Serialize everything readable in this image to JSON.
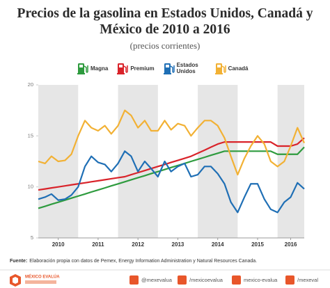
{
  "chart_data": {
    "type": "line",
    "title": "Precios de la gasolina en Estados Unidos, Canadá y México de 2010 a 2016",
    "subtitle": "(precios corrientes)",
    "x": [
      2010.0,
      2010.17,
      2010.33,
      2010.5,
      2010.67,
      2010.83,
      2011.0,
      2011.17,
      2011.33,
      2011.5,
      2011.67,
      2011.83,
      2012.0,
      2012.17,
      2012.33,
      2012.5,
      2012.67,
      2012.83,
      2013.0,
      2013.17,
      2013.33,
      2013.5,
      2013.67,
      2013.83,
      2014.0,
      2014.17,
      2014.33,
      2014.5,
      2014.67,
      2014.83,
      2015.0,
      2015.17,
      2015.33,
      2015.5,
      2015.67,
      2015.83,
      2016.0,
      2016.17,
      2016.33,
      2016.5,
      2016.67
    ],
    "series": [
      {
        "name": "Magna",
        "color": "#2e9b3e",
        "values": [
          7.9,
          8.1,
          8.3,
          8.5,
          8.7,
          8.9,
          9.1,
          9.3,
          9.5,
          9.7,
          9.9,
          10.1,
          10.3,
          10.5,
          10.7,
          10.9,
          11.1,
          11.3,
          11.5,
          11.7,
          11.9,
          12.1,
          12.3,
          12.5,
          12.7,
          12.9,
          13.1,
          13.3,
          13.5,
          13.5,
          13.5,
          13.5,
          13.5,
          13.5,
          13.5,
          13.5,
          13.2,
          13.2,
          13.2,
          13.2,
          13.9
        ]
      },
      {
        "name": "Premium",
        "color": "#d9232a",
        "values": [
          9.7,
          9.8,
          9.9,
          10.0,
          10.1,
          10.2,
          10.3,
          10.4,
          10.5,
          10.6,
          10.7,
          10.8,
          10.9,
          11.0,
          11.2,
          11.4,
          11.6,
          11.8,
          12.0,
          12.2,
          12.4,
          12.6,
          12.8,
          13.0,
          13.3,
          13.6,
          13.9,
          14.2,
          14.4,
          14.4,
          14.4,
          14.4,
          14.4,
          14.4,
          14.4,
          14.4,
          14.0,
          14.0,
          14.0,
          14.2,
          14.8
        ]
      },
      {
        "name": "Estados Unidos",
        "color": "#1f6fb5",
        "values": [
          8.8,
          9.0,
          9.3,
          8.7,
          8.8,
          9.2,
          10.0,
          12.0,
          13.0,
          12.4,
          12.2,
          11.5,
          12.3,
          13.5,
          13.0,
          11.5,
          12.5,
          11.8,
          11.0,
          12.5,
          11.5,
          12.0,
          12.3,
          11.0,
          11.2,
          12.0,
          12.0,
          11.3,
          10.3,
          8.5,
          7.5,
          9.0,
          10.3,
          10.3,
          8.8,
          7.8,
          7.5,
          8.5,
          9.0,
          10.4,
          9.8
        ]
      },
      {
        "name": "Canadá",
        "color": "#f2b134",
        "values": [
          12.5,
          12.3,
          13.0,
          12.5,
          12.6,
          13.2,
          15.0,
          16.5,
          15.8,
          15.5,
          16.0,
          15.2,
          16.0,
          17.5,
          17.0,
          15.8,
          16.5,
          15.5,
          15.5,
          16.5,
          15.6,
          16.2,
          16.0,
          15.0,
          15.8,
          16.5,
          16.5,
          16.0,
          14.8,
          13.0,
          11.2,
          12.8,
          14.0,
          15.0,
          14.2,
          12.5,
          12.0,
          12.5,
          14.0,
          15.8,
          14.3
        ]
      }
    ],
    "xlim": [
      2010.0,
      2016.67
    ],
    "xticks": [
      {
        "value": 2010.5,
        "label": "2010"
      },
      {
        "value": 2011.5,
        "label": "2011"
      },
      {
        "value": 2012.5,
        "label": "2012"
      },
      {
        "value": 2013.5,
        "label": "2013"
      },
      {
        "value": 2014.5,
        "label": "2014"
      },
      {
        "value": 2015.5,
        "label": "2015"
      },
      {
        "value": 2016.33,
        "label": "2016"
      }
    ],
    "ylim": [
      5,
      20
    ],
    "yticks": [
      5,
      10,
      15,
      20
    ],
    "grid": false,
    "source_label": "Fuente:",
    "source": "Elaboración propia con datos de Pemex, Energy Information Administration y Natural Resources Canada."
  },
  "footer": {
    "logo": "MÉXICO EVALÚA",
    "social": [
      "@mexevalua",
      "/mexicoevalua",
      "mexico-evalua",
      "/mexeval"
    ]
  }
}
